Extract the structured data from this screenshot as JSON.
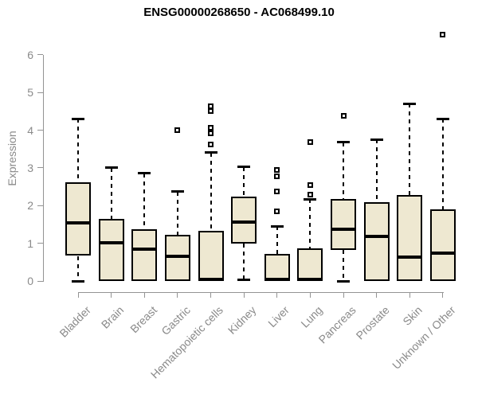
{
  "chart_data": {
    "type": "boxplot",
    "title": "ENSG00000268650 - AC068499.10",
    "ylabel": "Expression",
    "xlabel": "",
    "ylim": [
      0,
      6
    ],
    "yticks": [
      0,
      1,
      2,
      3,
      4,
      5,
      6
    ],
    "grid": false,
    "legend": false,
    "categories": [
      "Bladder",
      "Brain",
      "Breast",
      "Gastric",
      "Hematopoietic cells",
      "Kidney",
      "Liver",
      "Lung",
      "Pancreas",
      "Prostate",
      "Skin",
      "Unknown / Other"
    ],
    "boxes": [
      {
        "category": "Bladder",
        "whisker_low": 0,
        "q1": 0.67,
        "median": 1.55,
        "q3": 2.62,
        "whisker_high": 4.3,
        "outliers": []
      },
      {
        "category": "Brain",
        "whisker_low": 0,
        "q1": 0,
        "median": 1.01,
        "q3": 1.65,
        "whisker_high": 3.0,
        "outliers": []
      },
      {
        "category": "Breast",
        "whisker_low": 0,
        "q1": 0,
        "median": 0.84,
        "q3": 1.38,
        "whisker_high": 2.86,
        "outliers": []
      },
      {
        "category": "Gastric",
        "whisker_low": 0,
        "q1": 0,
        "median": 0.66,
        "q3": 1.23,
        "whisker_high": 2.37,
        "outliers": [
          4.0
        ]
      },
      {
        "category": "Hematopoietic cells",
        "whisker_low": 0,
        "q1": 0,
        "median": 0.04,
        "q3": 1.33,
        "whisker_high": 3.4,
        "outliers": [
          4.63,
          4.5,
          4.07,
          3.92,
          3.62
        ]
      },
      {
        "category": "Kidney",
        "whisker_low": 0.03,
        "q1": 1.0,
        "median": 1.56,
        "q3": 2.25,
        "whisker_high": 3.03,
        "outliers": []
      },
      {
        "category": "Liver",
        "whisker_low": 0,
        "q1": 0,
        "median": 0.04,
        "q3": 0.72,
        "whisker_high": 1.46,
        "outliers": [
          2.94,
          2.77,
          2.37,
          1.85
        ]
      },
      {
        "category": "Lung",
        "whisker_low": 0,
        "q1": 0,
        "median": 0.04,
        "q3": 0.86,
        "whisker_high": 2.17,
        "outliers": [
          3.68,
          2.54,
          2.29
        ]
      },
      {
        "category": "Pancreas",
        "whisker_low": 0,
        "q1": 0.82,
        "median": 1.37,
        "q3": 2.18,
        "whisker_high": 3.68,
        "outliers": [
          4.38
        ]
      },
      {
        "category": "Prostate",
        "whisker_low": 0,
        "q1": 0,
        "median": 1.19,
        "q3": 2.09,
        "whisker_high": 3.75,
        "outliers": []
      },
      {
        "category": "Skin",
        "whisker_low": 0,
        "q1": 0,
        "median": 0.63,
        "q3": 2.28,
        "whisker_high": 4.7,
        "outliers": []
      },
      {
        "category": "Unknown / Other",
        "whisker_low": 0,
        "q1": 0,
        "median": 0.75,
        "q3": 1.9,
        "whisker_high": 4.3,
        "outliers": [
          6.53
        ]
      }
    ],
    "colors": {
      "box_fill": "#EEE8D1",
      "box_border": "#000000",
      "median": "#000000",
      "whisker": "#000000",
      "axis_line": "#939393",
      "axis_text": "#8a8a8a",
      "title": "#000000",
      "background": "#ffffff"
    }
  }
}
